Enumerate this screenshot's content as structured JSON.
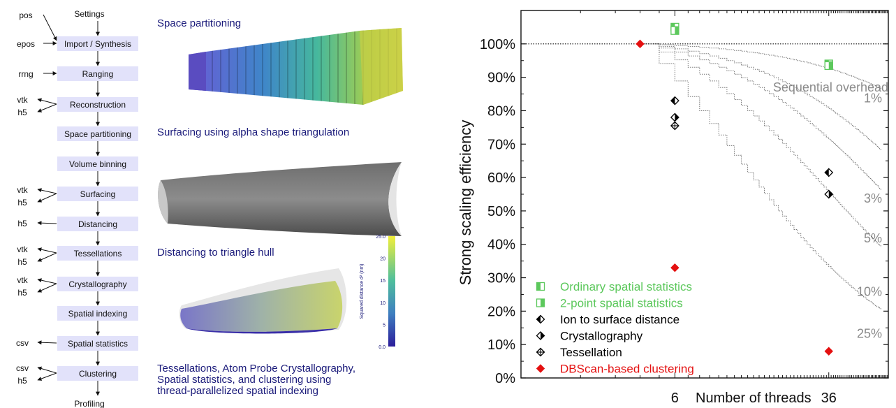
{
  "workflow": {
    "steps": [
      "Settings",
      "Import / Synthesis",
      "Ranging",
      "Reconstruction",
      "Space partitioning",
      "Volume binning",
      "Surfacing",
      "Distancing",
      "Tessellations",
      "Crystallography",
      "Spatial indexing",
      "Spatial statistics",
      "Clustering",
      "Profiling"
    ],
    "inputs": [
      "pos",
      "epos",
      "rrng"
    ],
    "outputs": [
      "vtk",
      "h5",
      "vtk",
      "h5",
      "h5",
      "vtk",
      "h5",
      "vtk",
      "h5",
      "csv",
      "csv",
      "h5"
    ]
  },
  "panels": {
    "space_partitioning": "Space partitioning",
    "surfacing": "Surfacing using alpha shape triangulation",
    "distancing": "Distancing to triangle hull",
    "tessellations_line1": "Tessellations, Atom Probe Crystallography,",
    "tessellations_line2": "Spatial statistics, and clustering using",
    "tessellations_line3": "thread-parallelized spatial indexing",
    "colorbar": {
      "label": "Squared distance d² (nm)",
      "ticks": [
        "25.0",
        "20",
        "15",
        "10",
        "5",
        "0.0"
      ]
    }
  },
  "chart_data": {
    "type": "scatter",
    "ylabel": "Strong scaling efficiency",
    "xlabel": "Number of threads",
    "x_ticks": [
      "6",
      "36"
    ],
    "x_scale": "log",
    "xlim": [
      1,
      72
    ],
    "y_ticks": [
      "0%",
      "10%",
      "20%",
      "30%",
      "40%",
      "50%",
      "60%",
      "70%",
      "80%",
      "90%",
      "100%"
    ],
    "ylim": [
      0,
      1.1
    ],
    "reference_line": 1.0,
    "series": [
      {
        "name": "Ordinary spatial statistics",
        "color": "#5cc85c",
        "marker": "square-half-left",
        "points": [
          [
            6,
            1.05
          ],
          [
            36,
            0.94
          ]
        ]
      },
      {
        "name": "2-point spatial statistics",
        "color": "#5cc85c",
        "marker": "square-half-right",
        "points": [
          [
            6,
            1.04
          ],
          [
            36,
            0.935
          ]
        ]
      },
      {
        "name": "Ion to surface distance",
        "color": "#000000",
        "marker": "diamond-half-left",
        "points": [
          [
            6,
            0.83
          ],
          [
            36,
            0.615
          ]
        ]
      },
      {
        "name": "Crystallography",
        "color": "#000000",
        "marker": "diamond-half-right",
        "points": [
          [
            6,
            0.78
          ],
          [
            36,
            0.55
          ]
        ]
      },
      {
        "name": "Tessellation",
        "color": "#000000",
        "marker": "diamond-cross",
        "points": [
          [
            6,
            0.755
          ]
        ]
      },
      {
        "name": "DBScan-based clustering",
        "color": "#e41010",
        "marker": "diamond-filled",
        "points": [
          [
            4,
            1.0
          ],
          [
            6,
            0.33
          ],
          [
            36,
            0.08
          ]
        ]
      }
    ],
    "amdahl_curves": {
      "title": "Sequential overhead",
      "fractions": [
        0.01,
        0.03,
        0.05,
        0.1,
        0.25
      ],
      "labels": [
        "1%",
        "3%",
        "5%",
        "10%",
        "25%"
      ]
    }
  }
}
